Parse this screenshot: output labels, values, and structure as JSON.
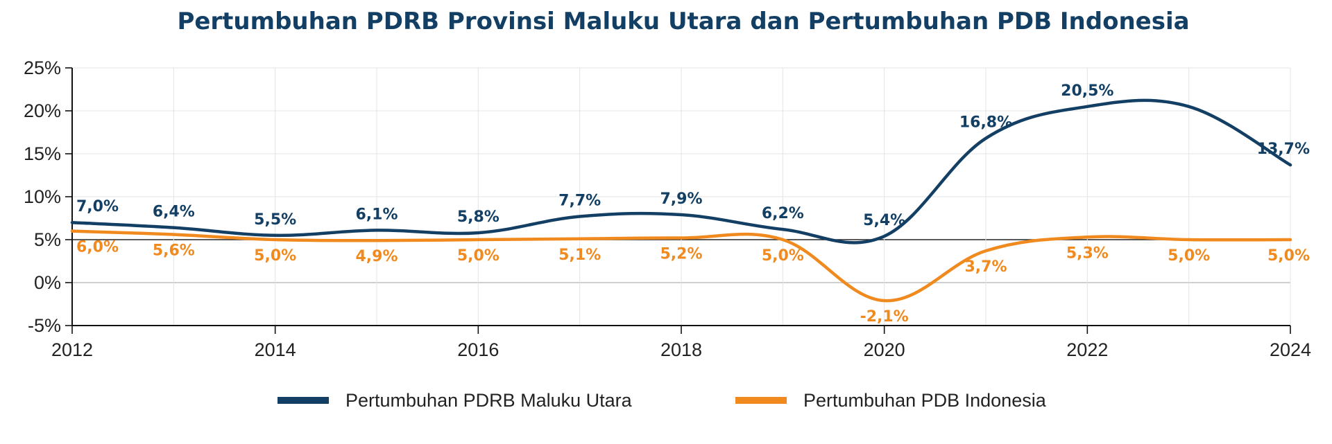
{
  "chart_data": {
    "type": "line",
    "title": "Pertumbuhan PDRB Provinsi Maluku Utara dan Pertumbuhan PDB Indonesia",
    "xlabel": "",
    "ylabel": "",
    "x": [
      2012,
      2013,
      2014,
      2015,
      2016,
      2017,
      2018,
      2019,
      2020,
      2021,
      2022,
      2023,
      2024
    ],
    "x_ticks": [
      "2012",
      "2014",
      "2016",
      "2018",
      "2020",
      "2022",
      "2024"
    ],
    "y_ticks": [
      "25%",
      "20%",
      "15%",
      "10%",
      "5%",
      "0%",
      "-5%"
    ],
    "xlim": [
      2012,
      2024
    ],
    "ylim": [
      -5,
      25
    ],
    "grid": true,
    "legend_position": "bottom",
    "series": [
      {
        "name": "Pertumbuhan PDRB Maluku Utara",
        "color": "#123f63",
        "values": [
          7.0,
          6.4,
          5.5,
          6.1,
          5.8,
          7.7,
          7.9,
          6.2,
          5.4,
          16.8,
          20.5,
          20.5,
          13.7
        ],
        "labels": [
          "7,0%",
          "6,4%",
          "5,5%",
          "6,1%",
          "5,8%",
          "7,7%",
          "7,9%",
          "6,2%",
          "5,4%",
          "16,8%",
          "20,5%",
          "",
          "13,7%"
        ]
      },
      {
        "name": "Pertumbuhan PDB Indonesia",
        "color": "#f08a1e",
        "values": [
          6.0,
          5.6,
          5.0,
          4.9,
          5.0,
          5.1,
          5.2,
          5.0,
          -2.1,
          3.7,
          5.3,
          5.0,
          5.0
        ],
        "labels": [
          "6,0%",
          "5,6%",
          "5,0%",
          "4,9%",
          "5,0%",
          "5,1%",
          "5,2%",
          "5,0%",
          "-2,1%",
          "3,7%",
          "5,3%",
          "5,0%",
          "5,0%"
        ]
      }
    ]
  },
  "colors": {
    "title": "#123f63",
    "maluku": "#123f63",
    "indonesia": "#f08a1e",
    "grid": "#e4e4e4",
    "axis": "#111111"
  }
}
